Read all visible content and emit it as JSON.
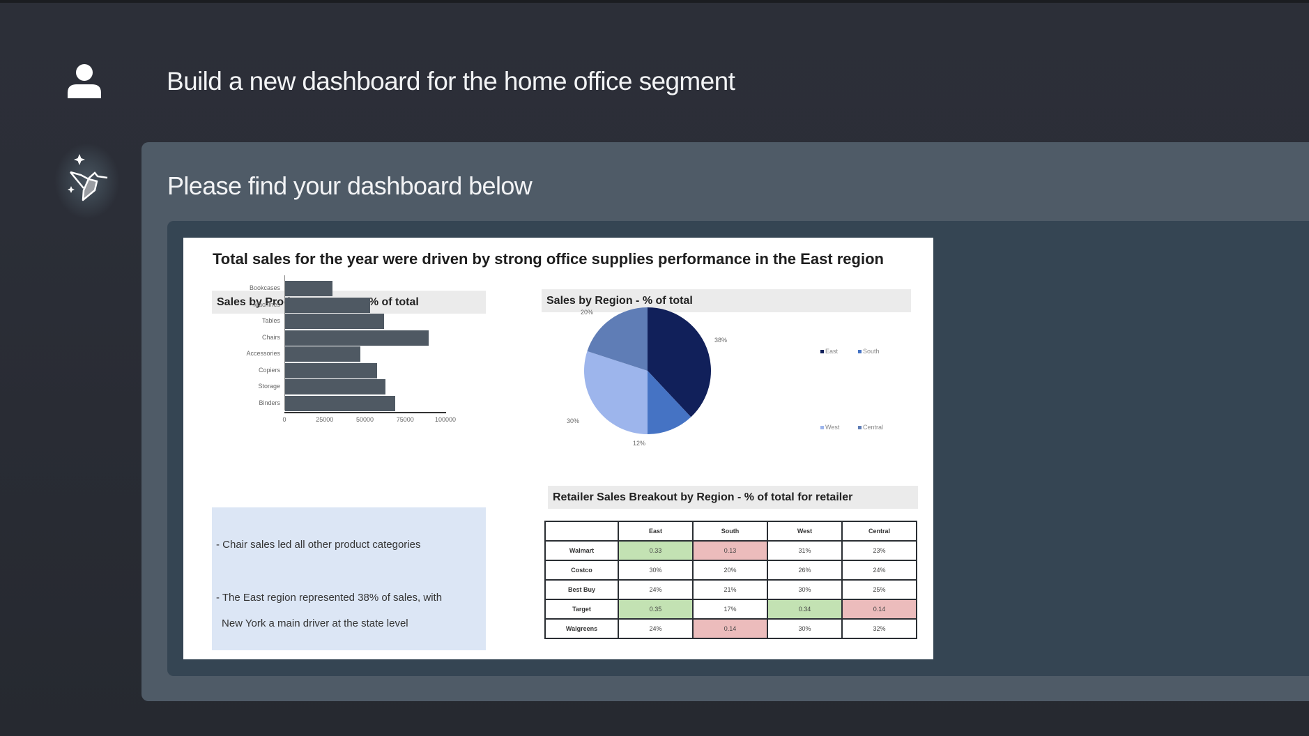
{
  "conversation": {
    "user_message": "Build a new dashboard for the home office segment",
    "assistant_message": "Please find your dashboard below",
    "user_avatar_icon": "person-icon",
    "assistant_avatar_icon": "bird-sparkle-logo-icon"
  },
  "dashboard": {
    "title": "Total sales for the year were driven by strong office supplies performance in the East region",
    "product_section_title": "Sales by Product Category - % of total",
    "region_section_title": "Sales by Region - % of total",
    "retailer_section_title": "Retailer Sales Breakout by Region - % of total for retailer",
    "notes": [
      "- Chair sales led all other product categories",
      "- The East region represented 38% of sales, with",
      "New York a main driver at the state level"
    ],
    "colors": {
      "bar": "#4f5963",
      "east": "#11205a",
      "south": "#4573c4",
      "west": "#9db5ec",
      "central": "#5f7db6",
      "highlight_good": "#c3e2b3",
      "highlight_bad": "#ecbcbc",
      "notes_bg": "#dce6f5"
    }
  },
  "chart_data": [
    {
      "type": "bar",
      "orientation": "horizontal",
      "title": "Sales by Product Category - % of total",
      "categories": [
        "Bookcases",
        "Machines",
        "Tables",
        "Chairs",
        "Accessories",
        "Copiers",
        "Storage",
        "Binders"
      ],
      "values": [
        29600,
        53000,
        61600,
        89300,
        46900,
        57300,
        62500,
        68400
      ],
      "xlabel": "",
      "ylabel": "",
      "xlim": [
        0,
        100000
      ],
      "xticks": [
        "0",
        "25000",
        "50000",
        "75000",
        "100000"
      ],
      "grid": false
    },
    {
      "type": "pie",
      "title": "Sales by Region - % of total",
      "categories": [
        "East",
        "South",
        "West",
        "Central"
      ],
      "values": [
        38,
        12,
        30,
        20
      ],
      "labels": [
        "38%",
        "12%",
        "30%",
        "20%"
      ],
      "legend_position": "right"
    },
    {
      "type": "table",
      "title": "Retailer Sales Breakout by Region - % of total for retailer",
      "columns": [
        "",
        "East",
        "South",
        "West",
        "Central"
      ],
      "rows": [
        {
          "retailer": "Walmart",
          "cells": [
            {
              "v": "0.33",
              "h": "good"
            },
            {
              "v": "0.13",
              "h": "bad"
            },
            {
              "v": "31%",
              "h": ""
            },
            {
              "v": "23%",
              "h": ""
            }
          ]
        },
        {
          "retailer": "Costco",
          "cells": [
            {
              "v": "30%",
              "h": ""
            },
            {
              "v": "20%",
              "h": ""
            },
            {
              "v": "26%",
              "h": ""
            },
            {
              "v": "24%",
              "h": ""
            }
          ]
        },
        {
          "retailer": "Best Buy",
          "cells": [
            {
              "v": "24%",
              "h": ""
            },
            {
              "v": "21%",
              "h": ""
            },
            {
              "v": "30%",
              "h": ""
            },
            {
              "v": "25%",
              "h": ""
            }
          ]
        },
        {
          "retailer": "Target",
          "cells": [
            {
              "v": "0.35",
              "h": "good"
            },
            {
              "v": "17%",
              "h": ""
            },
            {
              "v": "0.34",
              "h": "good"
            },
            {
              "v": "0.14",
              "h": "bad"
            }
          ]
        },
        {
          "retailer": "Walgreens",
          "cells": [
            {
              "v": "24%",
              "h": ""
            },
            {
              "v": "0.14",
              "h": "bad"
            },
            {
              "v": "30%",
              "h": ""
            },
            {
              "v": "32%",
              "h": ""
            }
          ]
        }
      ]
    }
  ]
}
